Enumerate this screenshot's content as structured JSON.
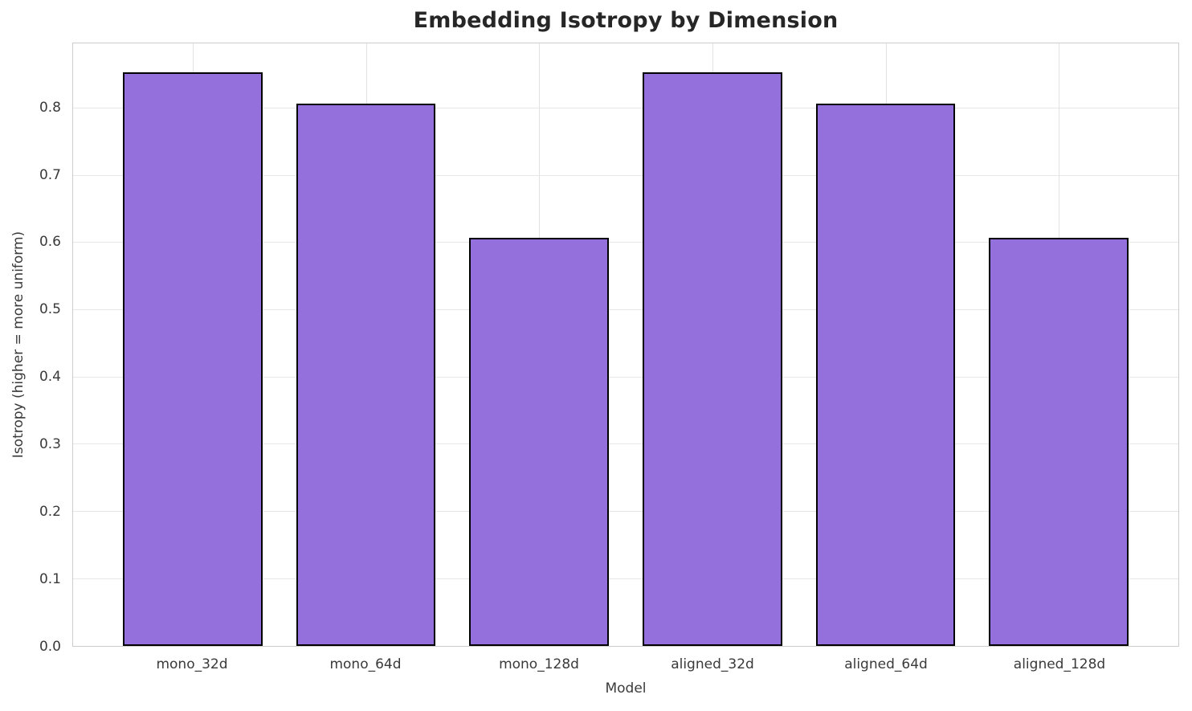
{
  "chart_data": {
    "type": "bar",
    "title": "Embedding Isotropy by Dimension",
    "xlabel": "Model",
    "ylabel": "Isotropy (higher = more uniform)",
    "categories": [
      "mono_32d",
      "mono_64d",
      "mono_128d",
      "aligned_32d",
      "aligned_64d",
      "aligned_128d"
    ],
    "values": [
      0.853,
      0.807,
      0.607,
      0.853,
      0.807,
      0.607
    ],
    "ylim": [
      0,
      0.896
    ],
    "yticks": [
      0.0,
      0.1,
      0.2,
      0.3,
      0.4,
      0.5,
      0.6,
      0.7,
      0.8
    ],
    "ytick_format_decimals": 1,
    "grid": true,
    "legend_position": "none",
    "bar_width_frac": 0.8,
    "colors": {
      "bar_fill": "#9370DB",
      "bar_edge": "#000000",
      "grid_line": "#e7e7e7",
      "spine": "#cccccc",
      "title_text": "#262626",
      "tick_text": "#3a3a3a"
    }
  }
}
